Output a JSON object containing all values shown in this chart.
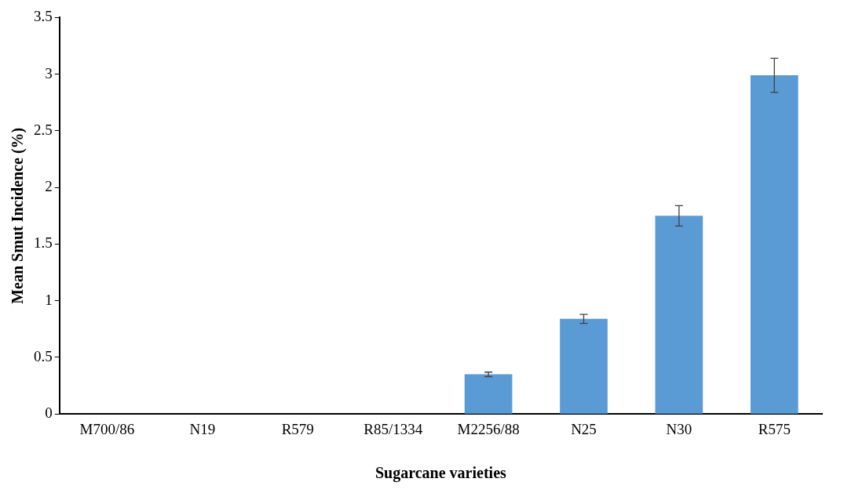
{
  "chart_data": {
    "type": "bar",
    "xlabel": "Sugarcane varieties",
    "ylabel": "Mean Smut Incidence (%)",
    "categories": [
      "M700/86",
      "N19",
      "R579",
      "R85/1334",
      "M2256/88",
      "N25",
      "N30",
      "R575"
    ],
    "values": [
      0,
      0,
      0,
      0,
      0.35,
      0.84,
      1.75,
      2.99
    ],
    "errors": [
      null,
      null,
      null,
      null,
      0.02,
      0.04,
      0.09,
      0.15
    ],
    "color": "#5b9bd5",
    "ylim": [
      0,
      3.5
    ],
    "yticks": [
      0,
      0.5,
      1,
      1.5,
      2,
      2.5,
      3,
      3.5
    ],
    "grid": false,
    "legend": false
  }
}
